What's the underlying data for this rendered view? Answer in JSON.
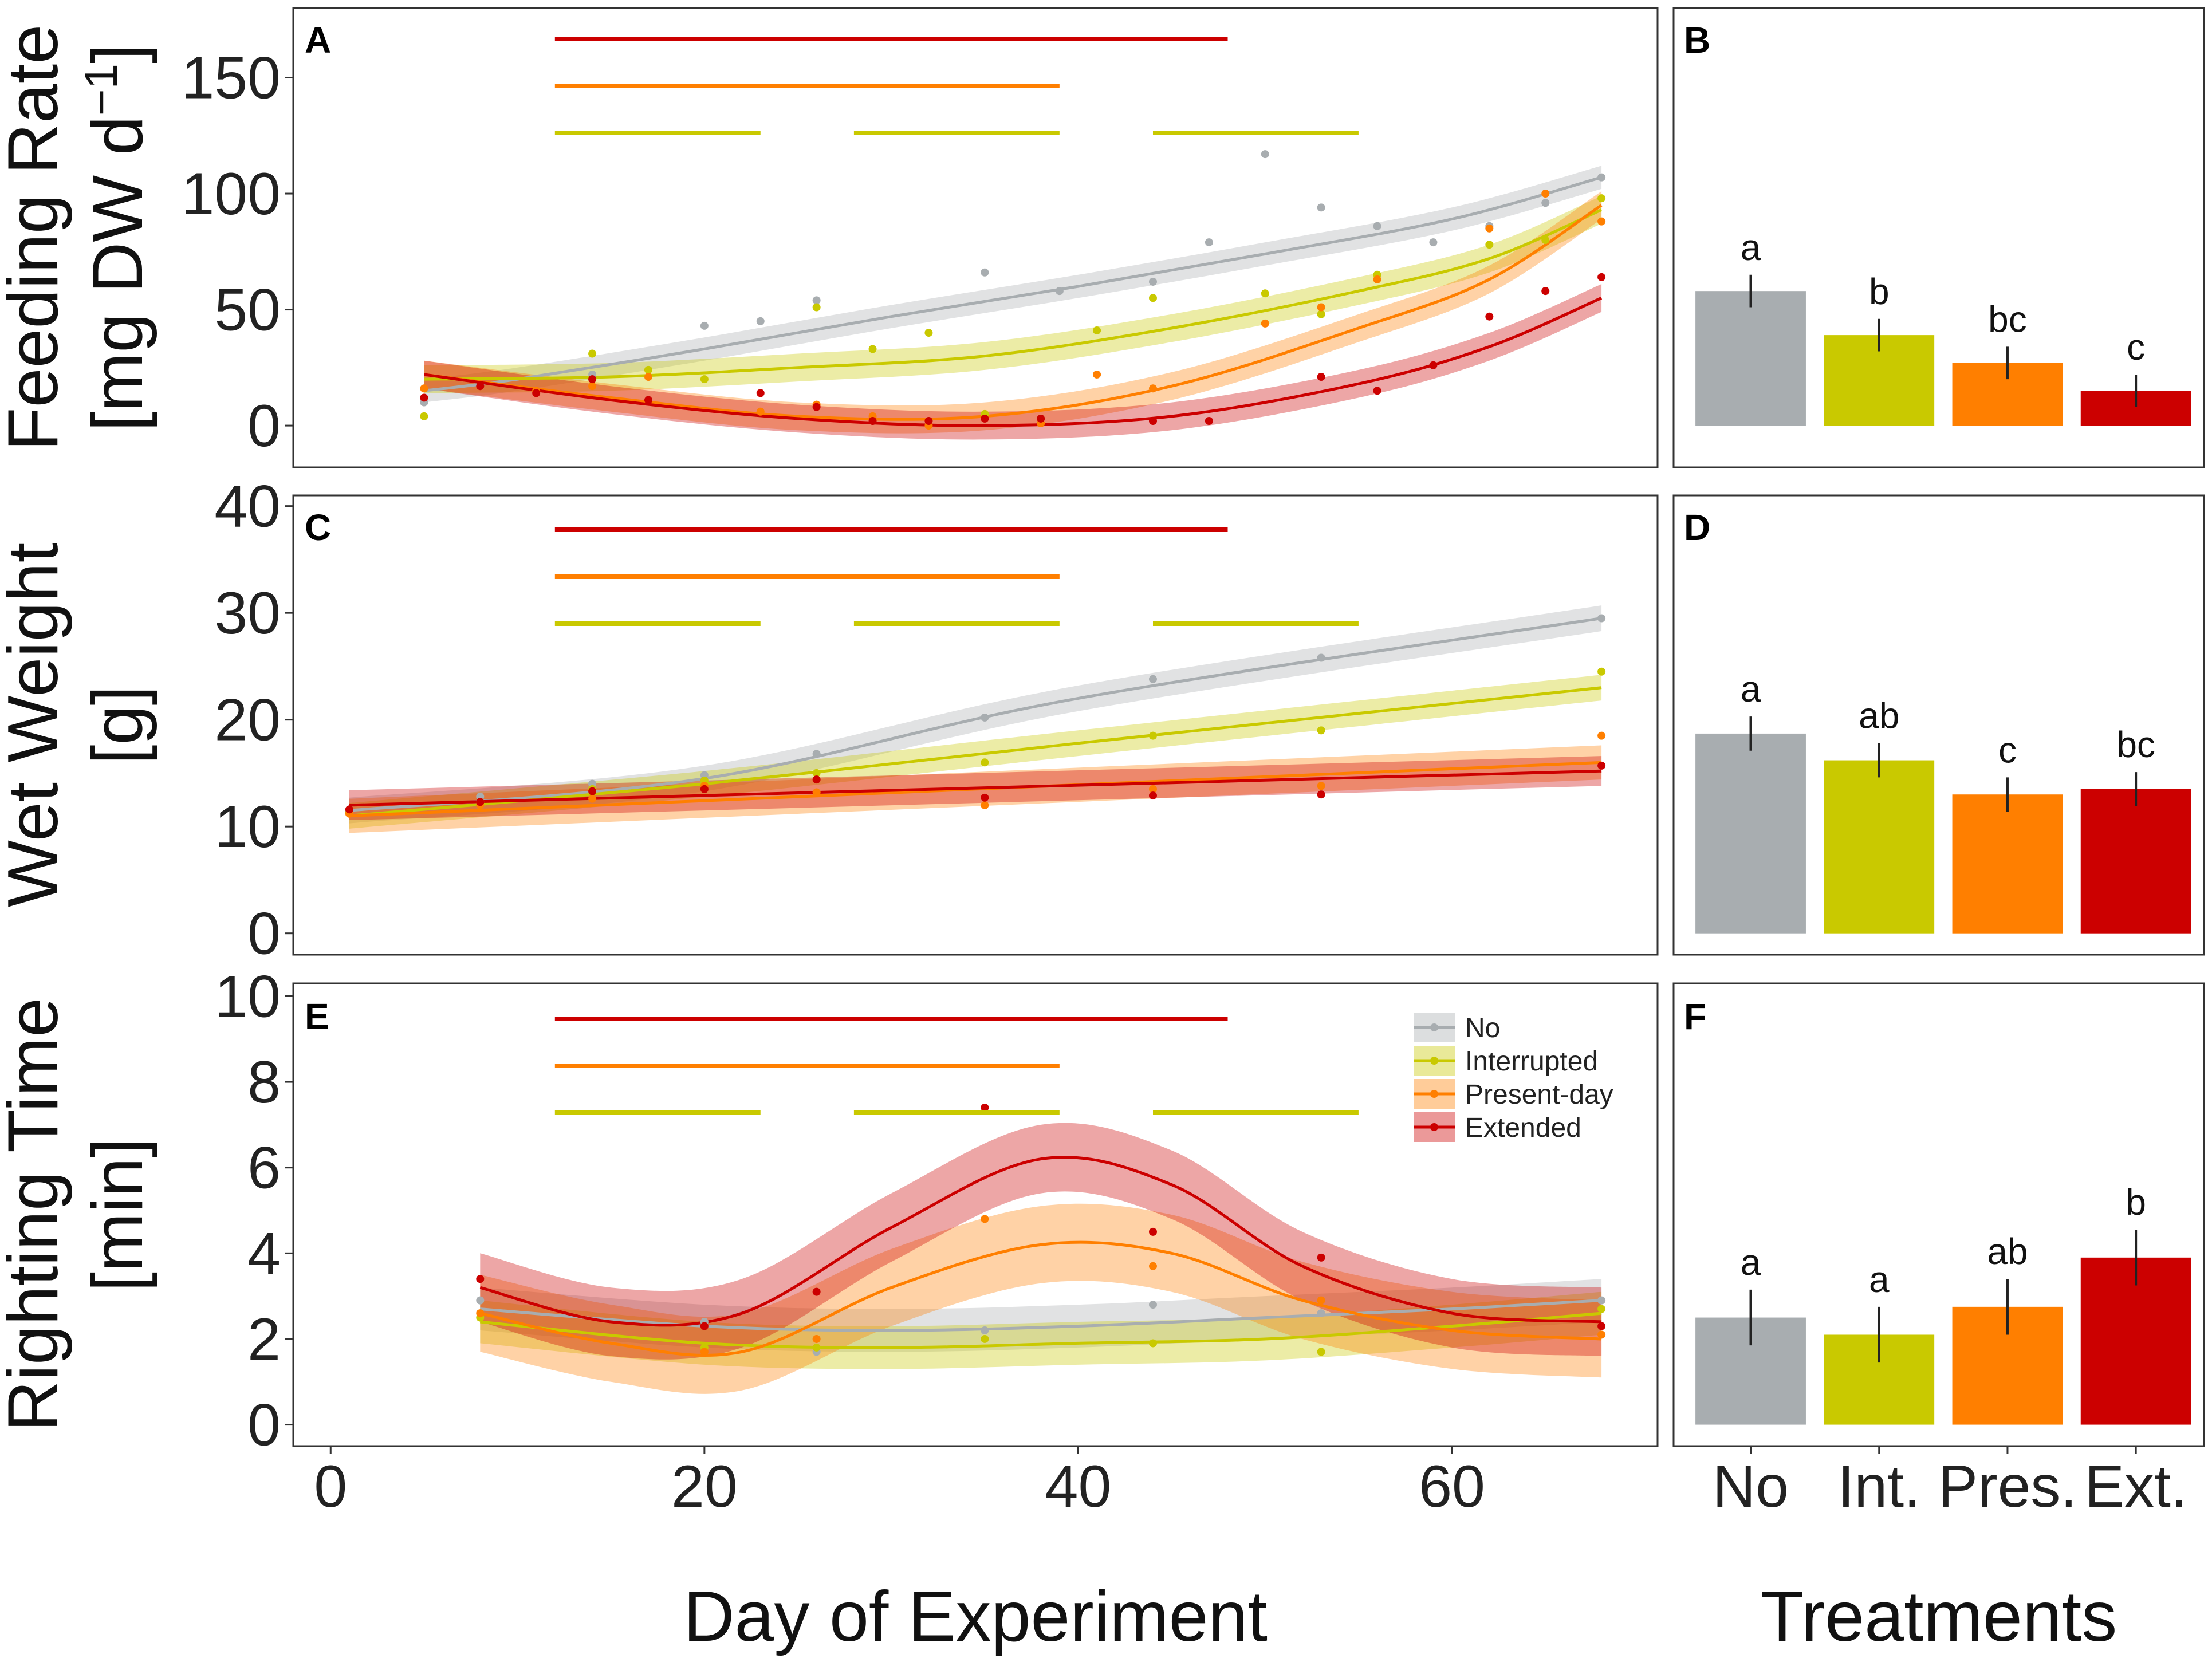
{
  "colors": {
    "No": "#a8adb0",
    "Interrupted": "#c9c900",
    "Present-day": "#ff7f00",
    "Extended": "#cc0000"
  },
  "treatment_bars": {
    "Extended": [
      [
        12,
        48
      ]
    ],
    "Present-day": [
      [
        12,
        39
      ]
    ],
    "Interrupted": [
      [
        12,
        23
      ],
      [
        28,
        39
      ],
      [
        44,
        55
      ]
    ]
  },
  "axes": {
    "xlabel": "Day of Experiment",
    "treatments_label": "Treatments",
    "x_ticks": [
      "0",
      "20",
      "40",
      "60"
    ],
    "bar_categories": [
      "No",
      "Int.",
      "Pres.",
      "Ext."
    ]
  },
  "legend": {
    "items": [
      "No",
      "Interrupted",
      "Present-day",
      "Extended"
    ]
  },
  "chart_data": [
    {
      "panel": "A",
      "type": "scatter",
      "ylabel_line1": "Feeding Rate",
      "ylabel_line2": "[mg DW d",
      "ylabel_sup": "−1",
      "ylabel_end": "]",
      "xlim": [
        -2,
        71
      ],
      "ylim": [
        -18,
        180
      ],
      "y_ticks": [
        0,
        50,
        100,
        150
      ],
      "series": [
        {
          "name": "No",
          "fit": [
            [
              5,
              15
            ],
            [
              10,
              20
            ],
            [
              20,
              33
            ],
            [
              30,
              47
            ],
            [
              40,
              60
            ],
            [
              50,
              74
            ],
            [
              60,
              89
            ],
            [
              68,
              107
            ]
          ],
          "band": 5,
          "points": [
            [
              5,
              10
            ],
            [
              14,
              22
            ],
            [
              20,
              43
            ],
            [
              23,
              45
            ],
            [
              26,
              54
            ],
            [
              35,
              66
            ],
            [
              39,
              58
            ],
            [
              44,
              62
            ],
            [
              47,
              79
            ],
            [
              50,
              117
            ],
            [
              53,
              94
            ],
            [
              56,
              86
            ],
            [
              59,
              79
            ],
            [
              62,
              86
            ],
            [
              65,
              96
            ],
            [
              68,
              107
            ]
          ]
        },
        {
          "name": "Interrupted",
          "fit": [
            [
              5,
              20
            ],
            [
              15,
              21
            ],
            [
              25,
              25
            ],
            [
              35,
              30
            ],
            [
              45,
              42
            ],
            [
              55,
              58
            ],
            [
              62,
              72
            ],
            [
              68,
              93
            ]
          ],
          "band": 6,
          "points": [
            [
              5,
              4
            ],
            [
              14,
              31
            ],
            [
              17,
              24
            ],
            [
              20,
              20
            ],
            [
              26,
              51
            ],
            [
              29,
              33
            ],
            [
              32,
              40
            ],
            [
              35,
              5
            ],
            [
              41,
              41
            ],
            [
              44,
              55
            ],
            [
              50,
              57
            ],
            [
              53,
              48
            ],
            [
              56,
              65
            ],
            [
              62,
              78
            ],
            [
              65,
              80
            ],
            [
              68,
              98
            ]
          ]
        },
        {
          "name": "Present-day",
          "fit": [
            [
              5,
              22
            ],
            [
              15,
              12
            ],
            [
              25,
              4
            ],
            [
              35,
              4
            ],
            [
              45,
              17
            ],
            [
              55,
              42
            ],
            [
              62,
              63
            ],
            [
              68,
              95
            ]
          ],
          "band": 6,
          "points": [
            [
              5,
              16
            ],
            [
              11,
              15
            ],
            [
              14,
              17
            ],
            [
              17,
              21
            ],
            [
              23,
              6
            ],
            [
              26,
              9
            ],
            [
              29,
              4
            ],
            [
              32,
              0
            ],
            [
              38,
              1
            ],
            [
              41,
              22
            ],
            [
              44,
              16
            ],
            [
              50,
              44
            ],
            [
              53,
              51
            ],
            [
              56,
              63
            ],
            [
              62,
              85
            ],
            [
              65,
              100
            ],
            [
              68,
              88
            ]
          ]
        },
        {
          "name": "Extended",
          "fit": [
            [
              5,
              22
            ],
            [
              15,
              11
            ],
            [
              25,
              3
            ],
            [
              35,
              0
            ],
            [
              45,
              4
            ],
            [
              55,
              18
            ],
            [
              62,
              34
            ],
            [
              68,
              55
            ]
          ],
          "band": 6,
          "points": [
            [
              5,
              12
            ],
            [
              8,
              17
            ],
            [
              11,
              14
            ],
            [
              14,
              20
            ],
            [
              17,
              11
            ],
            [
              23,
              14
            ],
            [
              26,
              8
            ],
            [
              29,
              2
            ],
            [
              32,
              2
            ],
            [
              35,
              3
            ],
            [
              38,
              3
            ],
            [
              44,
              2
            ],
            [
              47,
              2
            ],
            [
              53,
              21
            ],
            [
              56,
              15
            ],
            [
              59,
              26
            ],
            [
              62,
              47
            ],
            [
              65,
              58
            ],
            [
              68,
              64
            ]
          ]
        }
      ],
      "bars": {
        "values": [
          58,
          39,
          27,
          15
        ],
        "errors": [
          7,
          7,
          7,
          7
        ],
        "letters": [
          "a",
          "b",
          "bc",
          "c"
        ],
        "ylim": [
          -18,
          180
        ]
      }
    },
    {
      "panel": "C",
      "type": "scatter",
      "ylabel_line1": "Wet Weight",
      "ylabel_line2": "[g]",
      "xlim": [
        -2,
        71
      ],
      "ylim": [
        -2,
        41
      ],
      "y_ticks": [
        0,
        10,
        20,
        30,
        40
      ],
      "series": [
        {
          "name": "No",
          "fit": [
            [
              1,
              11.5
            ],
            [
              20,
              14.5
            ],
            [
              40,
              22
            ],
            [
              68,
              29.5
            ]
          ],
          "band": 1.2,
          "points": [
            [
              1,
              11.5
            ],
            [
              8,
              12.8
            ],
            [
              14,
              14
            ],
            [
              20,
              14.8
            ],
            [
              26,
              16.8
            ],
            [
              35,
              20.2
            ],
            [
              44,
              23.8
            ],
            [
              53,
              25.8
            ],
            [
              68,
              29.5
            ]
          ]
        },
        {
          "name": "Interrupted",
          "fit": [
            [
              1,
              11
            ],
            [
              20,
              14
            ],
            [
              40,
              17.8
            ],
            [
              68,
              23
            ]
          ],
          "band": 1.2,
          "points": [
            [
              1,
              11.3
            ],
            [
              8,
              12.3
            ],
            [
              14,
              13.5
            ],
            [
              20,
              14.3
            ],
            [
              26,
              15
            ],
            [
              35,
              16
            ],
            [
              44,
              18.5
            ],
            [
              53,
              19
            ],
            [
              68,
              24.5
            ]
          ]
        },
        {
          "name": "Present-day",
          "fit": [
            [
              1,
              11
            ],
            [
              68,
              16
            ]
          ],
          "band": 1.6,
          "points": [
            [
              1,
              11.2
            ],
            [
              8,
              12
            ],
            [
              14,
              12.6
            ],
            [
              20,
              13.8
            ],
            [
              26,
              13.2
            ],
            [
              35,
              12
            ],
            [
              44,
              13.5
            ],
            [
              53,
              13.8
            ],
            [
              68,
              18.5
            ]
          ]
        },
        {
          "name": "Extended",
          "fit": [
            [
              1,
              12
            ],
            [
              68,
              15.2
            ]
          ],
          "band": 1.4,
          "points": [
            [
              1,
              11.6
            ],
            [
              8,
              12.3
            ],
            [
              14,
              13.3
            ],
            [
              20,
              13.5
            ],
            [
              26,
              14.4
            ],
            [
              35,
              12.7
            ],
            [
              44,
              12.9
            ],
            [
              53,
              13
            ],
            [
              68,
              15.7
            ]
          ]
        }
      ],
      "bars": {
        "values": [
          18.7,
          16.2,
          13,
          13.5
        ],
        "errors": [
          1.6,
          1.6,
          1.6,
          1.6
        ],
        "letters": [
          "a",
          "ab",
          "c",
          "bc"
        ],
        "ylim": [
          -2,
          41
        ]
      }
    },
    {
      "panel": "E",
      "type": "scatter",
      "ylabel_line1": "Righting Time",
      "ylabel_line2": "[min]",
      "xlim": [
        -2,
        71
      ],
      "ylim": [
        -0.5,
        10.3
      ],
      "y_ticks": [
        0,
        2,
        4,
        6,
        8,
        10
      ],
      "series": [
        {
          "name": "No",
          "fit": [
            [
              8,
              2.7
            ],
            [
              20,
              2.3
            ],
            [
              30,
              2.2
            ],
            [
              40,
              2.3
            ],
            [
              50,
              2.5
            ],
            [
              60,
              2.7
            ],
            [
              68,
              2.9
            ]
          ],
          "band": 0.5,
          "points": [
            [
              8,
              2.9
            ],
            [
              20,
              2.4
            ],
            [
              26,
              1.7
            ],
            [
              35,
              2.2
            ],
            [
              44,
              2.8
            ],
            [
              53,
              2.6
            ],
            [
              68,
              2.9
            ]
          ]
        },
        {
          "name": "Interrupted",
          "fit": [
            [
              8,
              2.4
            ],
            [
              20,
              1.9
            ],
            [
              30,
              1.8
            ],
            [
              40,
              1.9
            ],
            [
              50,
              2
            ],
            [
              60,
              2.3
            ],
            [
              68,
              2.6
            ]
          ],
          "band": 0.5,
          "points": [
            [
              8,
              2.5
            ],
            [
              20,
              1.8
            ],
            [
              26,
              1.8
            ],
            [
              35,
              2
            ],
            [
              44,
              1.9
            ],
            [
              53,
              1.7
            ],
            [
              68,
              2.7
            ]
          ]
        },
        {
          "name": "Present-day",
          "fit": [
            [
              8,
              2.6
            ],
            [
              15,
              1.9
            ],
            [
              22,
              1.7
            ],
            [
              30,
              3.2
            ],
            [
              38,
              4.2
            ],
            [
              45,
              4
            ],
            [
              52,
              2.9
            ],
            [
              60,
              2.2
            ],
            [
              68,
              2
            ]
          ],
          "band": 0.9,
          "points": [
            [
              8,
              2.6
            ],
            [
              20,
              1.7
            ],
            [
              26,
              2
            ],
            [
              35,
              4.8
            ],
            [
              44,
              3.7
            ],
            [
              53,
              2.9
            ],
            [
              68,
              2.1
            ]
          ]
        },
        {
          "name": "Extended",
          "fit": [
            [
              8,
              3.2
            ],
            [
              15,
              2.4
            ],
            [
              22,
              2.6
            ],
            [
              30,
              4.6
            ],
            [
              38,
              6.2
            ],
            [
              45,
              5.6
            ],
            [
              52,
              3.7
            ],
            [
              60,
              2.6
            ],
            [
              68,
              2.4
            ]
          ],
          "band": 0.8,
          "points": [
            [
              8,
              3.4
            ],
            [
              20,
              2.3
            ],
            [
              26,
              3.1
            ],
            [
              35,
              7.4
            ],
            [
              44,
              4.5
            ],
            [
              53,
              3.9
            ],
            [
              68,
              2.3
            ]
          ]
        }
      ],
      "bars": {
        "values": [
          2.5,
          2.1,
          2.75,
          3.9
        ],
        "errors": [
          0.65,
          0.65,
          0.65,
          0.65
        ],
        "letters": [
          "a",
          "a",
          "ab",
          "b"
        ],
        "ylim": [
          -0.5,
          10.3
        ]
      }
    }
  ]
}
